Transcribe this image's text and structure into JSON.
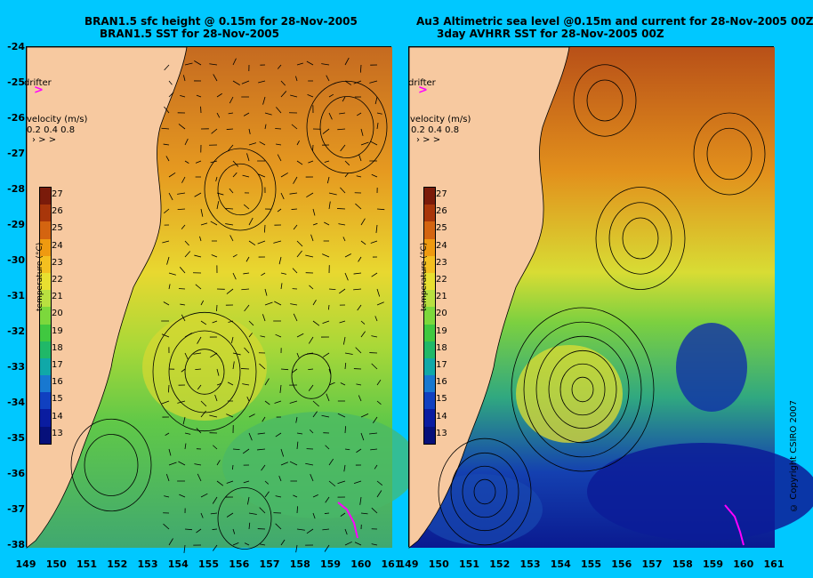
{
  "left_panel": {
    "title_line1": "BRAN1.5 sfc height @ 0.15m for 28-Nov-2005",
    "title_line2": "BRAN1.5 SST for 28-Nov-2005",
    "drifter_label": "drifter",
    "velocity_label": "velocity (m/s)",
    "velocity_scale": "0.2 0.4 0.8"
  },
  "right_panel": {
    "title_line1": "Au3 Altimetric sea level  @0.15m and current for 28-Nov-2005 00Z",
    "title_line2": "3day AVHRR SST for 28-Nov-2005 00Z",
    "drifter_label": "drifter",
    "velocity_label": "velocity (m/s)",
    "velocity_scale": "0.2 0.4 0.8"
  },
  "colorbar": {
    "label": "temperature (°C)",
    "ticks": [
      "27",
      "26",
      "25",
      "24",
      "23",
      "22",
      "21",
      "20",
      "19",
      "18",
      "17",
      "16",
      "15",
      "14",
      "13"
    ]
  },
  "latitude_labels": [
    "-24",
    "-25",
    "-26",
    "-27",
    "-28",
    "-29",
    "-30",
    "-31",
    "-32",
    "-33",
    "-34",
    "-35",
    "-36",
    "-37",
    "-38"
  ],
  "longitude_labels": [
    "149",
    "150",
    "151",
    "152",
    "153",
    "154",
    "155",
    "156",
    "157",
    "158",
    "159",
    "160",
    "161"
  ],
  "copyright": "© Copyright CSIRO 2007",
  "colors": {
    "background": "#00c8ff",
    "land": "#f7c9a0",
    "drifter": "#ff00ff"
  }
}
